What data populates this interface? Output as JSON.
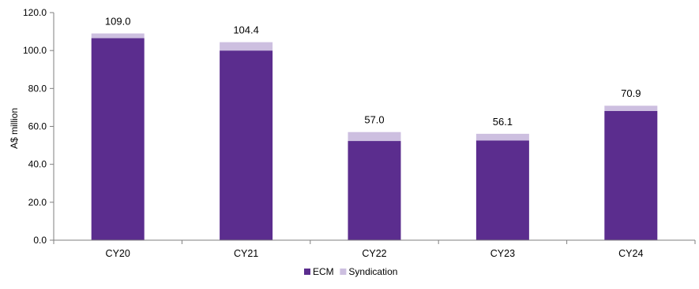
{
  "chart_data": {
    "type": "bar",
    "stacked": true,
    "categories": [
      "CY20",
      "CY21",
      "CY22",
      "CY23",
      "CY24"
    ],
    "series": [
      {
        "name": "ECM",
        "values": [
          106.5,
          100.0,
          52.3,
          52.6,
          68.1
        ],
        "color": "#5b2d8e"
      },
      {
        "name": "Syndication",
        "values": [
          2.5,
          4.4,
          4.7,
          3.5,
          2.8
        ],
        "color": "#cdbfe0"
      }
    ],
    "totals": [
      "109.0",
      "104.4",
      "57.0",
      "56.1",
      "70.9"
    ],
    "ylabel": "A$ million",
    "ylim": [
      0,
      120
    ],
    "yticks": [
      "0.0",
      "20.0",
      "40.0",
      "60.0",
      "80.0",
      "100.0",
      "120.0"
    ],
    "legend_position": "bottom-center",
    "grid": false
  }
}
